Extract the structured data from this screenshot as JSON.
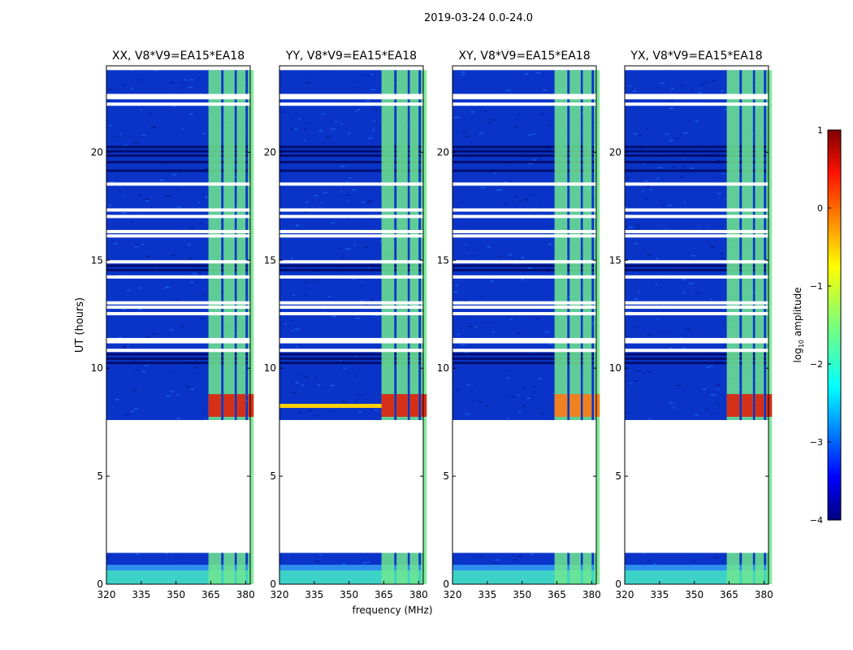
{
  "figure": {
    "suptitle": "2019-03-24 0.0-24.0",
    "xlabel": "frequency (MHz)",
    "ylabel": "UT (hours)"
  },
  "chart_data": {
    "type": "heatmap",
    "x_range": [
      320,
      382
    ],
    "y_range": [
      0,
      24
    ],
    "x_ticks": [
      "320",
      "335",
      "350",
      "365",
      "380"
    ],
    "x_tick_values": [
      320,
      335,
      350,
      365,
      380
    ],
    "y_ticks": [
      "0",
      "5",
      "10",
      "15",
      "20"
    ],
    "y_tick_values": [
      0,
      5,
      10,
      15,
      20
    ],
    "panels": [
      {
        "title": "XX, V8*V9=EA15*EA18"
      },
      {
        "title": "YY, V8*V9=EA15*EA18"
      },
      {
        "title": "XY, V8*V9=EA15*EA18"
      },
      {
        "title": "YX, V8*V9=EA15*EA18"
      }
    ],
    "data_gaps_hours": [
      [
        1.45,
        7.6
      ]
    ],
    "colorbar": {
      "label_prefix": "log",
      "label_sub": "10",
      "label_suffix": " amplitude",
      "range": [
        -4,
        1
      ],
      "ticks": [
        "−4",
        "−3",
        "−2",
        "−1",
        "0",
        "1"
      ],
      "tick_values": [
        -4,
        -3,
        -2,
        -1,
        0,
        1
      ],
      "colormap": "jet"
    },
    "colors": {
      "noise": "#0a34c8",
      "band": "#6fe88e",
      "strong": "#d43018",
      "gap": "#ffffff"
    }
  }
}
